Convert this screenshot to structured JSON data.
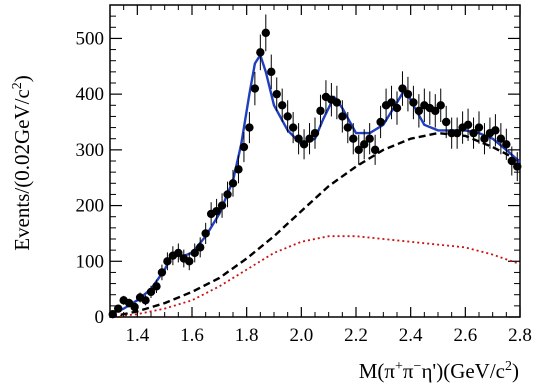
{
  "chart_data": {
    "type": "scatter",
    "title": "",
    "xlabel_parts": {
      "prefix": "M(π",
      "plus": "+",
      "mid": "π",
      "minus": "−",
      "suffix": "η')(GeV/c",
      "exp": "2",
      "close": ")"
    },
    "ylabel_parts": {
      "prefix": "Events/(0.02GeV/c",
      "exp": "2",
      "close": ")"
    },
    "xlim": [
      1.3,
      2.8
    ],
    "ylim": [
      0,
      560
    ],
    "xticks": [
      "1.4",
      "1.6",
      "1.8",
      "2.0",
      "2.2",
      "2.4",
      "2.6",
      "2.8"
    ],
    "yticks": [
      "0",
      "100",
      "200",
      "300",
      "400",
      "500"
    ],
    "grid": false,
    "series": [
      {
        "kind": "data-points",
        "color": "#000000",
        "x": [
          1.31,
          1.33,
          1.35,
          1.37,
          1.39,
          1.41,
          1.43,
          1.45,
          1.47,
          1.49,
          1.51,
          1.53,
          1.55,
          1.57,
          1.59,
          1.61,
          1.63,
          1.65,
          1.67,
          1.69,
          1.71,
          1.73,
          1.75,
          1.77,
          1.79,
          1.81,
          1.83,
          1.85,
          1.87,
          1.89,
          1.91,
          1.93,
          1.95,
          1.97,
          1.99,
          2.01,
          2.03,
          2.05,
          2.07,
          2.09,
          2.11,
          2.13,
          2.15,
          2.17,
          2.19,
          2.21,
          2.23,
          2.25,
          2.27,
          2.29,
          2.31,
          2.33,
          2.35,
          2.37,
          2.39,
          2.41,
          2.43,
          2.45,
          2.47,
          2.49,
          2.51,
          2.53,
          2.55,
          2.57,
          2.59,
          2.61,
          2.63,
          2.65,
          2.67,
          2.69,
          2.71,
          2.73,
          2.75,
          2.77,
          2.79
        ],
        "y": [
          5,
          15,
          30,
          25,
          18,
          35,
          30,
          45,
          55,
          80,
          100,
          110,
          115,
          105,
          100,
          115,
          125,
          150,
          185,
          190,
          200,
          220,
          240,
          265,
          305,
          340,
          410,
          475,
          510,
          440,
          400,
          380,
          360,
          340,
          320,
          310,
          320,
          330,
          370,
          395,
          390,
          385,
          360,
          340,
          320,
          300,
          310,
          320,
          300,
          350,
          380,
          385,
          375,
          410,
          400,
          385,
          370,
          380,
          375,
          370,
          380,
          350,
          330,
          330,
          340,
          345,
          330,
          340,
          320,
          330,
          335,
          320,
          310,
          280,
          270
        ],
        "err": [
          4,
          6,
          8,
          8,
          7,
          9,
          9,
          11,
          12,
          14,
          16,
          17,
          17,
          16,
          16,
          17,
          18,
          19,
          21,
          22,
          22,
          23,
          24,
          25,
          27,
          28,
          30,
          32,
          33,
          31,
          30,
          30,
          29,
          28,
          28,
          27,
          28,
          28,
          29,
          30,
          30,
          30,
          29,
          28,
          28,
          27,
          27,
          28,
          27,
          29,
          30,
          30,
          30,
          31,
          31,
          30,
          30,
          30,
          30,
          30,
          30,
          29,
          28,
          28,
          29,
          29,
          28,
          29,
          28,
          28,
          29,
          28,
          28,
          26,
          26
        ]
      },
      {
        "kind": "total-fit",
        "color": "#1f3fbf",
        "x": [
          1.3,
          1.35,
          1.4,
          1.45,
          1.5,
          1.53,
          1.56,
          1.6,
          1.65,
          1.7,
          1.75,
          1.78,
          1.81,
          1.83,
          1.85,
          1.87,
          1.9,
          1.95,
          2.0,
          2.05,
          2.08,
          2.12,
          2.15,
          2.2,
          2.25,
          2.3,
          2.35,
          2.38,
          2.41,
          2.45,
          2.5,
          2.55,
          2.6,
          2.65,
          2.7,
          2.75,
          2.8
        ],
        "y": [
          5,
          15,
          30,
          50,
          85,
          115,
          108,
          115,
          145,
          185,
          245,
          310,
          400,
          455,
          470,
          440,
          380,
          335,
          310,
          320,
          355,
          395,
          375,
          330,
          330,
          345,
          385,
          410,
          380,
          345,
          335,
          335,
          335,
          330,
          320,
          300,
          278
        ]
      },
      {
        "kind": "background",
        "color": "#000000",
        "x": [
          1.3,
          1.4,
          1.5,
          1.6,
          1.7,
          1.8,
          1.9,
          2.0,
          2.1,
          2.2,
          2.3,
          2.4,
          2.5,
          2.6,
          2.7,
          2.8
        ],
        "y": [
          0,
          10,
          25,
          45,
          70,
          105,
          145,
          190,
          235,
          270,
          300,
          320,
          330,
          325,
          305,
          280
        ]
      },
      {
        "kind": "component",
        "color": "#cc1111",
        "x": [
          1.3,
          1.4,
          1.5,
          1.6,
          1.7,
          1.8,
          1.9,
          2.0,
          2.1,
          2.2,
          2.3,
          2.4,
          2.5,
          2.6,
          2.7,
          2.8
        ],
        "y": [
          0,
          5,
          15,
          30,
          55,
          85,
          115,
          135,
          145,
          145,
          140,
          135,
          130,
          125,
          112,
          95
        ]
      }
    ]
  }
}
